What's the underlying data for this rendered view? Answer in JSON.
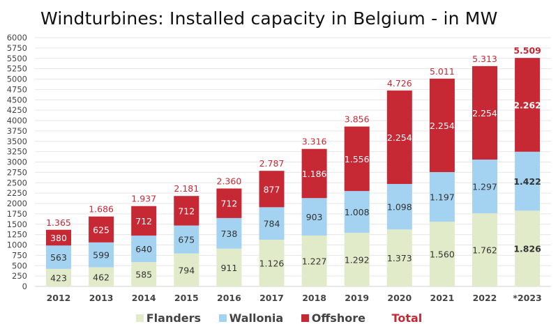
{
  "chart_data": {
    "type": "bar",
    "stacked": true,
    "title": "Windturbines: Installed capacity in Belgium - in MW",
    "xlabel": "",
    "ylabel": "",
    "ylim": [
      0,
      6000
    ],
    "ytick_step": 250,
    "yticks": [
      "0",
      "250",
      "500",
      "750",
      "1000",
      "1250",
      "1500",
      "1750",
      "2000",
      "2250",
      "2500",
      "2750",
      "3000",
      "3250",
      "3500",
      "3750",
      "4000",
      "4250",
      "4500",
      "4750",
      "5000",
      "5250",
      "5500",
      "5750",
      "6000"
    ],
    "grid": true,
    "legend_position": "bottom",
    "categories": [
      "2012",
      "2013",
      "2014",
      "2015",
      "2016",
      "2017",
      "2018",
      "2019",
      "2020",
      "2021",
      "2022",
      "*2023"
    ],
    "series": [
      {
        "name": "Flanders",
        "color": "#e2ebc9",
        "label_color": "#333333",
        "values": [
          423,
          462,
          585,
          794,
          911,
          1126,
          1227,
          1292,
          1373,
          1560,
          1762,
          1826
        ],
        "labels": [
          "423",
          "462",
          "585",
          "794",
          "911",
          "1.126",
          "1.227",
          "1.292",
          "1.373",
          "1.560",
          "1.762",
          "1.826"
        ]
      },
      {
        "name": "Wallonia",
        "color": "#a4d2f1",
        "label_color": "#333333",
        "values": [
          563,
          599,
          640,
          675,
          738,
          784,
          903,
          1008,
          1098,
          1197,
          1297,
          1422
        ],
        "labels": [
          "563",
          "599",
          "640",
          "675",
          "738",
          "784",
          "903",
          "1.008",
          "1.098",
          "1.197",
          "1.297",
          "1.422"
        ]
      },
      {
        "name": "Offshore",
        "color": "#c62834",
        "label_color": "#ffffff",
        "values": [
          380,
          625,
          712,
          712,
          712,
          877,
          1186,
          1556,
          2254,
          2254,
          2254,
          2262
        ],
        "labels": [
          "380",
          "625",
          "712",
          "712",
          "712",
          "877",
          "1.186",
          "1.556",
          "2.254",
          "2.254",
          "2.254",
          "2.262"
        ]
      }
    ],
    "totals": {
      "name": "Total",
      "color": "#c62834",
      "values": [
        1365,
        1686,
        1937,
        2181,
        2360,
        2787,
        3316,
        3856,
        4726,
        5011,
        5313,
        5509
      ],
      "labels": [
        "1.365",
        "1.686",
        "1.937",
        "2.181",
        "2.360",
        "2.787",
        "3.316",
        "3.856",
        "4.726",
        "5.011",
        "5.313",
        "5.509"
      ]
    },
    "bold_categories": [
      "*2023"
    ]
  },
  "legend": {
    "items": [
      {
        "label": "Flanders",
        "color": "#e2ebc9"
      },
      {
        "label": "Wallonia",
        "color": "#a4d2f1"
      },
      {
        "label": "Offshore",
        "color": "#c62834"
      }
    ],
    "total_label": "Total"
  }
}
